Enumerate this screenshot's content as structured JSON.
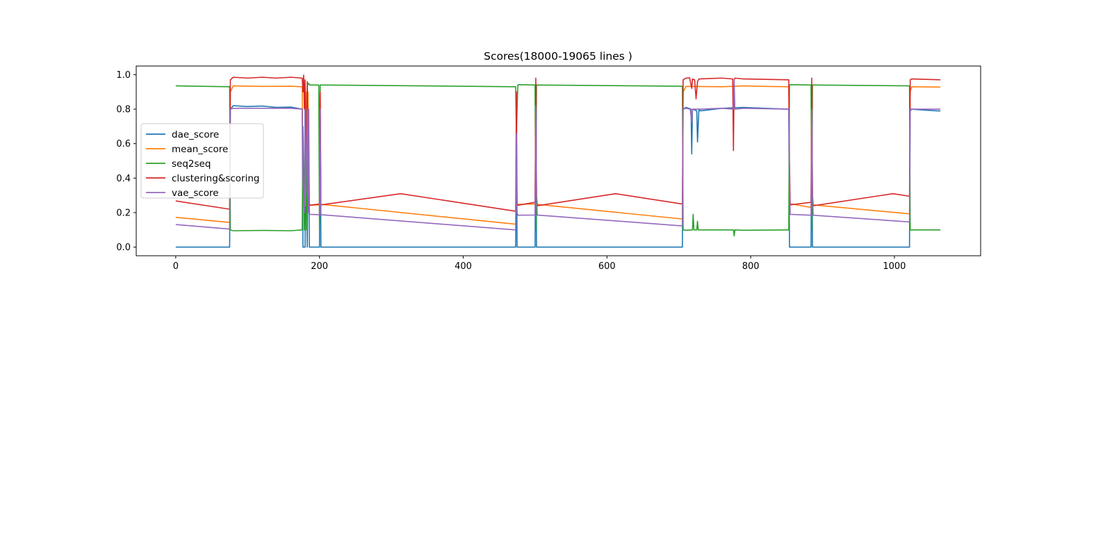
{
  "chart_data": {
    "type": "line",
    "title": "Scores(18000-19065 lines )",
    "xlabel": "",
    "ylabel": "",
    "xlim": [
      -55,
      1120
    ],
    "ylim": [
      -0.05,
      1.05
    ],
    "x_ticks": [
      0,
      200,
      400,
      600,
      800,
      1000
    ],
    "x_tick_labels": [
      "0",
      "200",
      "400",
      "600",
      "800",
      "1000"
    ],
    "y_ticks": [
      0.0,
      0.2,
      0.4,
      0.6,
      0.8,
      1.0
    ],
    "y_tick_labels": [
      "0.0",
      "0.2",
      "0.4",
      "0.6",
      "0.8",
      "1.0"
    ],
    "legend_position": "center-left",
    "grid": false,
    "series": [
      {
        "name": "dae_score",
        "color": "#1f77b4",
        "x": [
          0,
          75,
          76,
          80,
          100,
          120,
          140,
          160,
          176,
          177,
          180,
          181,
          183,
          184,
          186,
          187,
          200,
          201,
          202,
          473,
          474,
          475,
          476,
          477,
          500,
          501,
          502,
          503,
          504,
          705,
          706,
          710,
          717,
          718,
          719,
          725,
          726,
          728,
          730,
          760,
          790,
          820,
          852,
          853,
          854,
          855,
          856,
          884,
          885,
          886,
          887,
          1021,
          1022,
          1024,
          1040,
          1060,
          1064
        ],
        "values": [
          0.0,
          0.0,
          0.8,
          0.82,
          0.815,
          0.818,
          0.81,
          0.812,
          0.8,
          0.0,
          0.0,
          0.8,
          0.0,
          0.8,
          0.0,
          0.0,
          0.0,
          0.8,
          0.0,
          0.0,
          0.6,
          0.0,
          0.0,
          0.0,
          0.0,
          0.8,
          0.0,
          0.0,
          0.0,
          0.0,
          0.8,
          0.81,
          0.8,
          0.54,
          0.8,
          0.79,
          0.61,
          0.8,
          0.79,
          0.805,
          0.81,
          0.805,
          0.8,
          0.8,
          0.0,
          0.0,
          0.0,
          0.0,
          0.8,
          0.0,
          0.0,
          0.0,
          0.79,
          0.8,
          0.795,
          0.79,
          0.79
        ]
      },
      {
        "name": "mean_score",
        "color": "#ff7f0e",
        "x": [
          0,
          75,
          76,
          80,
          120,
          160,
          176,
          177,
          180,
          181,
          183,
          184,
          186,
          187,
          200,
          201,
          202,
          473,
          474,
          475,
          476,
          500,
          501,
          502,
          503,
          705,
          706,
          710,
          760,
          790,
          820,
          852,
          853,
          854,
          855,
          884,
          885,
          886,
          887,
          1021,
          1022,
          1024,
          1064
        ],
        "values": [
          0.173,
          0.143,
          0.9,
          0.935,
          0.932,
          0.933,
          0.93,
          0.4,
          0.24,
          0.9,
          0.3,
          0.9,
          0.25,
          0.243,
          0.245,
          0.9,
          0.248,
          0.133,
          0.6,
          0.25,
          0.248,
          0.25,
          0.9,
          0.3,
          0.248,
          0.163,
          0.9,
          0.932,
          0.93,
          0.935,
          0.932,
          0.93,
          0.93,
          0.4,
          0.252,
          0.23,
          0.9,
          0.3,
          0.245,
          0.193,
          0.9,
          0.93,
          0.928
        ]
      },
      {
        "name": "seq2seq",
        "color": "#2ca02c",
        "x": [
          0,
          75,
          76,
          80,
          120,
          160,
          176,
          177,
          179,
          180,
          182,
          183,
          185,
          186,
          199,
          200,
          201,
          202,
          473,
          474,
          476,
          477,
          500,
          501,
          502,
          705,
          706,
          710,
          719,
          720,
          721,
          725,
          726,
          727,
          730,
          776,
          777,
          778,
          790,
          852,
          853,
          854,
          855,
          884,
          885,
          886,
          887,
          1021,
          1022,
          1024,
          1064
        ],
        "values": [
          0.935,
          0.93,
          0.1,
          0.095,
          0.097,
          0.095,
          0.1,
          0.7,
          0.1,
          0.92,
          0.1,
          0.94,
          0.95,
          0.94,
          0.94,
          0.1,
          0.94,
          0.94,
          0.93,
          0.65,
          0.94,
          0.942,
          0.94,
          0.1,
          0.94,
          0.933,
          0.1,
          0.098,
          0.1,
          0.19,
          0.1,
          0.1,
          0.15,
          0.1,
          0.1,
          0.1,
          0.065,
          0.1,
          0.098,
          0.1,
          0.1,
          0.94,
          0.942,
          0.94,
          0.1,
          0.94,
          0.94,
          0.935,
          0.1,
          0.1,
          0.1
        ]
      },
      {
        "name": "clustering&scoring",
        "color": "#d62728",
        "x": [
          0,
          75,
          76,
          80,
          100,
          120,
          140,
          160,
          176,
          177,
          178,
          179,
          180,
          181,
          183,
          184,
          186,
          200,
          201,
          202,
          313,
          473,
          474,
          475,
          476,
          500,
          501,
          502,
          503,
          612,
          705,
          706,
          710,
          715,
          718,
          719,
          722,
          724,
          726,
          728,
          760,
          775,
          776,
          777,
          778,
          790,
          852,
          853,
          854,
          855,
          884,
          885,
          886,
          887,
          998,
          1021,
          1022,
          1024,
          1064
        ],
        "values": [
          0.268,
          0.22,
          0.97,
          0.985,
          0.98,
          0.985,
          0.98,
          0.985,
          0.98,
          0.9,
          0.998,
          0.8,
          0.97,
          0.5,
          0.96,
          0.25,
          0.243,
          0.25,
          0.9,
          0.245,
          0.31,
          0.208,
          0.9,
          0.25,
          0.243,
          0.26,
          0.98,
          0.3,
          0.24,
          0.31,
          0.25,
          0.97,
          0.98,
          0.982,
          0.92,
          0.975,
          0.97,
          0.86,
          0.96,
          0.975,
          0.98,
          0.975,
          0.56,
          0.97,
          0.98,
          0.975,
          0.97,
          0.97,
          0.5,
          0.245,
          0.26,
          0.98,
          0.3,
          0.24,
          0.31,
          0.295,
          0.97,
          0.975,
          0.97
        ]
      },
      {
        "name": "vae_score",
        "color": "#9467bd",
        "x": [
          0,
          75,
          76,
          80,
          120,
          160,
          176,
          177,
          179,
          180,
          181,
          183,
          184,
          185,
          186,
          200,
          201,
          202,
          473,
          474,
          475,
          476,
          500,
          501,
          502,
          503,
          705,
          706,
          710,
          716,
          718,
          719,
          730,
          760,
          776,
          777,
          778,
          790,
          852,
          853,
          854,
          855,
          884,
          885,
          886,
          887,
          1021,
          1022,
          1024,
          1064
        ],
        "values": [
          0.131,
          0.105,
          0.8,
          0.805,
          0.805,
          0.805,
          0.8,
          0.4,
          0.2,
          0.8,
          0.3,
          0.8,
          0.2,
          0.8,
          0.19,
          0.188,
          0.8,
          0.188,
          0.1,
          0.66,
          0.2,
          0.185,
          0.186,
          0.82,
          0.3,
          0.186,
          0.123,
          0.8,
          0.805,
          0.8,
          0.72,
          0.8,
          0.8,
          0.805,
          0.8,
          0.97,
          0.8,
          0.805,
          0.8,
          0.8,
          0.4,
          0.19,
          0.185,
          0.8,
          0.3,
          0.185,
          0.146,
          0.8,
          0.8,
          0.8
        ]
      }
    ]
  }
}
